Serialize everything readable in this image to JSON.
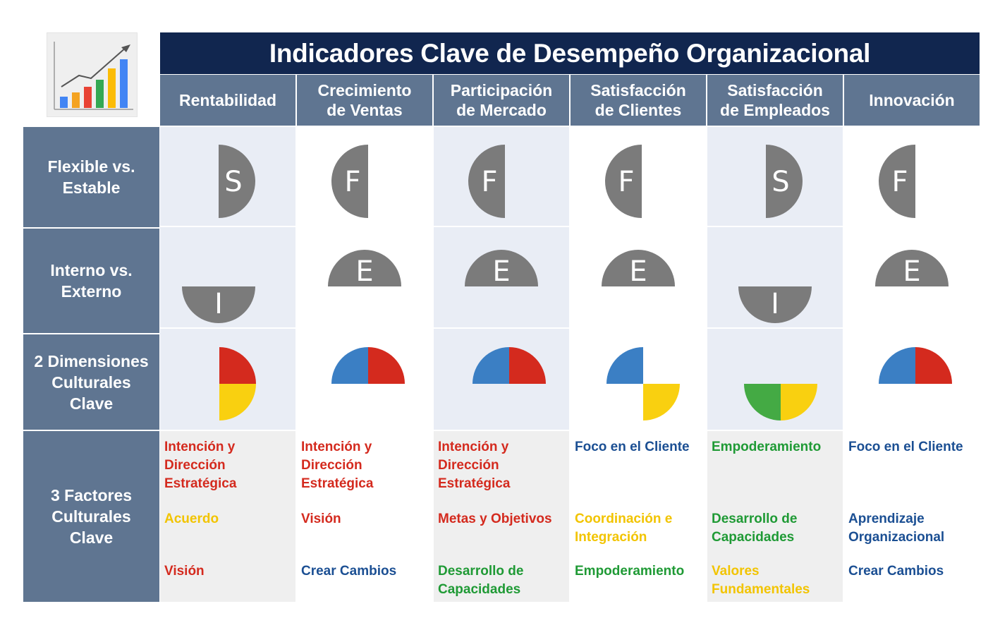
{
  "title": "Indicadores Clave de Desempeño Organizacional",
  "logo_icon": "bar-chart-growth-icon",
  "columns": [
    {
      "id": "rentabilidad",
      "label": "Rentabilidad"
    },
    {
      "id": "crecimiento-ventas",
      "label": "Crecimiento\nde Ventas"
    },
    {
      "id": "participacion-mercado",
      "label": "Participación\nde Mercado"
    },
    {
      "id": "satisfaccion-clientes",
      "label": "Satisfacción\nde Clientes"
    },
    {
      "id": "satisfaccion-empleados",
      "label": "Satisfacción\nde Empleados"
    },
    {
      "id": "innovacion",
      "label": "Innovación"
    }
  ],
  "rows": {
    "flexible": "Flexible vs.\nEstable",
    "interno": "Interno vs.\nExterno",
    "dimensiones": "2 Dimensiones\nCulturales\nClave",
    "factores": "3 Factores\nCulturales\nClave"
  },
  "flexible_values": [
    "S",
    "F",
    "F",
    "F",
    "S",
    "F"
  ],
  "interno_values": [
    "I",
    "E",
    "E",
    "E",
    "I",
    "E"
  ],
  "dimension_quadrants": [
    [
      "top-right",
      "bottom-right"
    ],
    [
      "top-left",
      "top-right"
    ],
    [
      "top-left",
      "top-right"
    ],
    [
      "top-left",
      "bottom-right"
    ],
    [
      "bottom-left",
      "bottom-right"
    ],
    [
      "top-left",
      "top-right"
    ]
  ],
  "colors": {
    "title_bg": "#11264f",
    "header_bg": "#5f7591",
    "shape_gray": "#7b7b7b",
    "top-left": "#3b7fc4",
    "top-right": "#d42a1e",
    "bottom-right": "#f9d010",
    "bottom-left": "#44aa44",
    "red": "#d42a1e",
    "yellow": "#f2c400",
    "green": "#1f9a35",
    "blue": "#1b4f93"
  },
  "factors": [
    [
      {
        "text": "Intención y\nDirección\nEstratégica",
        "color": "red"
      },
      {
        "text": "Acuerdo",
        "color": "yellow"
      },
      {
        "text": "Visión",
        "color": "red"
      }
    ],
    [
      {
        "text": "Intención y\nDirección\nEstratégica",
        "color": "red"
      },
      {
        "text": "Visión",
        "color": "red"
      },
      {
        "text": "Crear Cambios",
        "color": "blue"
      }
    ],
    [
      {
        "text": "Intención y\nDirección\nEstratégica",
        "color": "red"
      },
      {
        "text": "Metas y Objetivos",
        "color": "red"
      },
      {
        "text": "Desarrollo de\nCapacidades",
        "color": "green"
      }
    ],
    [
      {
        "text": "Foco en el Cliente",
        "color": "blue"
      },
      {
        "text": "Coordinación e\nIntegración",
        "color": "yellow"
      },
      {
        "text": "Empoderamiento",
        "color": "green"
      }
    ],
    [
      {
        "text": "Empoderamiento",
        "color": "green"
      },
      {
        "text": "Desarrollo de\nCapacidades",
        "color": "green"
      },
      {
        "text": "Valores\nFundamentales",
        "color": "yellow"
      }
    ],
    [
      {
        "text": "Foco en el Cliente",
        "color": "blue"
      },
      {
        "text": "Aprendizaje\nOrganizacional",
        "color": "blue"
      },
      {
        "text": "Crear Cambios",
        "color": "blue"
      }
    ]
  ]
}
